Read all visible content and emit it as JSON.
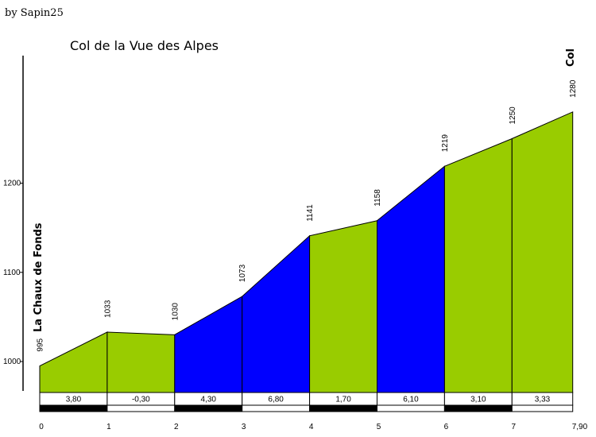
{
  "credit": "by Sapin25",
  "colors": {
    "green": "#99cc00",
    "blue": "#0000ff",
    "line": "#000000",
    "scale_dark": "#000000",
    "scale_light": "#ffffff"
  },
  "chart_data": {
    "type": "area",
    "title": "Col de la Vue des Alpes",
    "start_label": "La Chaux de Fonds",
    "end_label": "Col",
    "x_unit": "km",
    "y_unit": "m",
    "ylim": [
      970,
      1290
    ],
    "xlim": [
      0,
      7.9
    ],
    "y_ticks": [
      "1000",
      "1100",
      "1200"
    ],
    "x_ticks": [
      {
        "value": 0,
        "label": "0"
      },
      {
        "value": 1,
        "label": "1"
      },
      {
        "value": 2,
        "label": "2"
      },
      {
        "value": 3,
        "label": "3"
      },
      {
        "value": 4,
        "label": "4"
      },
      {
        "value": 5,
        "label": "5"
      },
      {
        "value": 6,
        "label": "6"
      },
      {
        "value": 7,
        "label": "7"
      },
      {
        "value": 7.9,
        "label": "7,90"
      }
    ],
    "points": [
      {
        "x": 0,
        "y": 995,
        "label": "995"
      },
      {
        "x": 1,
        "y": 1033,
        "label": "1033"
      },
      {
        "x": 2,
        "y": 1030,
        "label": "1030"
      },
      {
        "x": 3,
        "y": 1073,
        "label": "1073"
      },
      {
        "x": 4,
        "y": 1141,
        "label": "1141"
      },
      {
        "x": 5,
        "y": 1158,
        "label": "1158"
      },
      {
        "x": 6,
        "y": 1219,
        "label": "1219"
      },
      {
        "x": 7,
        "y": 1250,
        "label": "1250"
      },
      {
        "x": 7.9,
        "y": 1280,
        "label": "1280"
      }
    ],
    "segments": [
      {
        "grade": "3,80",
        "color": "green"
      },
      {
        "grade": "-0,30",
        "color": "green"
      },
      {
        "grade": "4,30",
        "color": "blue"
      },
      {
        "grade": "6,80",
        "color": "blue"
      },
      {
        "grade": "1,70",
        "color": "green"
      },
      {
        "grade": "6,10",
        "color": "blue"
      },
      {
        "grade": "3,10",
        "color": "green"
      },
      {
        "grade": "3,33",
        "color": "green"
      }
    ]
  }
}
